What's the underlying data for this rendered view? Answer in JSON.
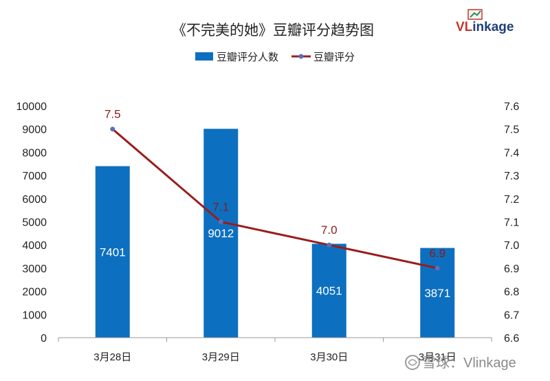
{
  "logo": {
    "first": "VL",
    "rest": "inkage"
  },
  "watermark": "雪球：Vlinkage",
  "colors": {
    "bar": "#0d6fbf",
    "line": "#9b1c1c",
    "marker": "#5b6fb8",
    "axis": "#9a9a9a"
  },
  "chart_data": {
    "type": "bar+line",
    "title": "《不完美的她》豆瓣评分趋势图",
    "categories": [
      "3月28日",
      "3月29日",
      "3月30日",
      "3月31日"
    ],
    "series": [
      {
        "name": "豆瓣评分人数",
        "type": "bar",
        "axis": "left",
        "values": [
          7401,
          9012,
          4051,
          3871
        ]
      },
      {
        "name": "豆瓣评分",
        "type": "line",
        "axis": "right",
        "values": [
          7.5,
          7.1,
          7.0,
          6.9
        ]
      }
    ],
    "y_left": {
      "min": 0,
      "max": 10000,
      "step": 1000,
      "ticks": [
        "0",
        "1000",
        "2000",
        "3000",
        "4000",
        "5000",
        "6000",
        "7000",
        "8000",
        "9000",
        "10000"
      ]
    },
    "y_right": {
      "min": 6.6,
      "max": 7.6,
      "step": 0.1,
      "ticks": [
        "6.6",
        "6.7",
        "6.8",
        "6.9",
        "7.0",
        "7.1",
        "7.2",
        "7.3",
        "7.4",
        "7.5",
        "7.6"
      ]
    },
    "bar_labels": [
      "7401",
      "9012",
      "4051",
      "3871"
    ],
    "line_labels": [
      "7.5",
      "7.1",
      "7.0",
      "6.9"
    ],
    "legend": "top-center",
    "grid": false
  }
}
